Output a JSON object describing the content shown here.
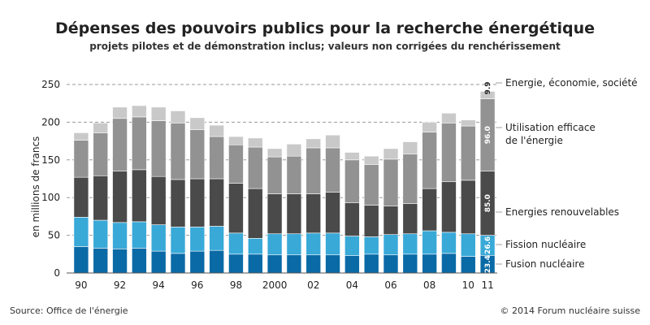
{
  "header": {
    "title": "Dépenses des pouvoirs publics pour la recherche énergétique",
    "subtitle": "projets pilotes et de démonstration inclus; valeurs non corrigées du renchérissement"
  },
  "footer": {
    "source": "Source: Office de l'énergie",
    "copyright": "© 2014 Forum nucléaire suisse"
  },
  "chart_data": {
    "type": "bar",
    "stacked": true,
    "title": "Dépenses des pouvoirs publics pour la recherche énergétique",
    "subtitle": "projets pilotes et de démonstration inclus; valeurs non corrigées du renchérissement",
    "xlabel": "",
    "ylabel": "en millions de francs",
    "ylim": [
      0,
      250
    ],
    "yticks": [
      0,
      50,
      100,
      150,
      200,
      250
    ],
    "grid": true,
    "categories": [
      "1990",
      "1991",
      "1992",
      "1993",
      "1994",
      "1995",
      "1996",
      "1997",
      "1998",
      "1999",
      "2000",
      "2001",
      "2002",
      "2003",
      "2004",
      "2005",
      "2006",
      "2007",
      "2008",
      "2009",
      "2010",
      "2011"
    ],
    "x_tick_labels": [
      "90",
      "",
      "92",
      "",
      "94",
      "",
      "96",
      "",
      "98",
      "",
      "2000",
      "",
      "02",
      "",
      "04",
      "",
      "06",
      "",
      "08",
      "",
      "10",
      "11"
    ],
    "series": [
      {
        "name": "Fusion nucléaire",
        "color": "#0a6aa6",
        "values": [
          35,
          33,
          32,
          33,
          29,
          26,
          29,
          30,
          25,
          25,
          24,
          24,
          24,
          24,
          23,
          25,
          24,
          25,
          25,
          26,
          22,
          23.4
        ]
      },
      {
        "name": "Fission nucléaire",
        "color": "#39a9d8",
        "values": [
          39,
          37,
          35,
          35,
          35,
          35,
          32,
          32,
          28,
          21,
          28,
          28,
          29,
          29,
          26,
          23,
          27,
          27,
          31,
          28,
          30,
          26.6
        ]
      },
      {
        "name": "Energies renouvelables",
        "color": "#4a4a4a",
        "values": [
          53,
          59,
          68,
          69,
          64,
          63,
          64,
          63,
          66,
          66,
          53,
          53,
          52,
          54,
          44,
          42,
          38,
          40,
          56,
          67,
          71,
          85.0
        ]
      },
      {
        "name": "Utilisation efficace de l'énergie",
        "color": "#929292",
        "values": [
          49,
          57,
          70,
          70,
          74,
          75,
          65,
          56,
          51,
          55,
          49,
          50,
          61,
          59,
          57,
          54,
          62,
          66,
          75,
          78,
          72,
          96.0
        ]
      },
      {
        "name": "Energie, économie, société",
        "color": "#c9c9c9",
        "values": [
          10,
          13,
          15,
          15,
          18,
          16,
          16,
          15,
          11,
          12,
          11,
          16,
          12,
          17,
          10,
          11,
          14,
          16,
          13,
          13,
          8,
          9.9
        ]
      }
    ],
    "value_labels_2011": [
      "23.4",
      "26.6",
      "85.0",
      "96.0",
      "9.9"
    ],
    "legend": {
      "placement": "right",
      "entries": [
        "Energie, économie, société",
        "Utilisation efficace",
        "de l'énergie",
        "Energies renouvelables",
        "Fission nucléaire",
        "Fusion nucléaire"
      ]
    }
  }
}
